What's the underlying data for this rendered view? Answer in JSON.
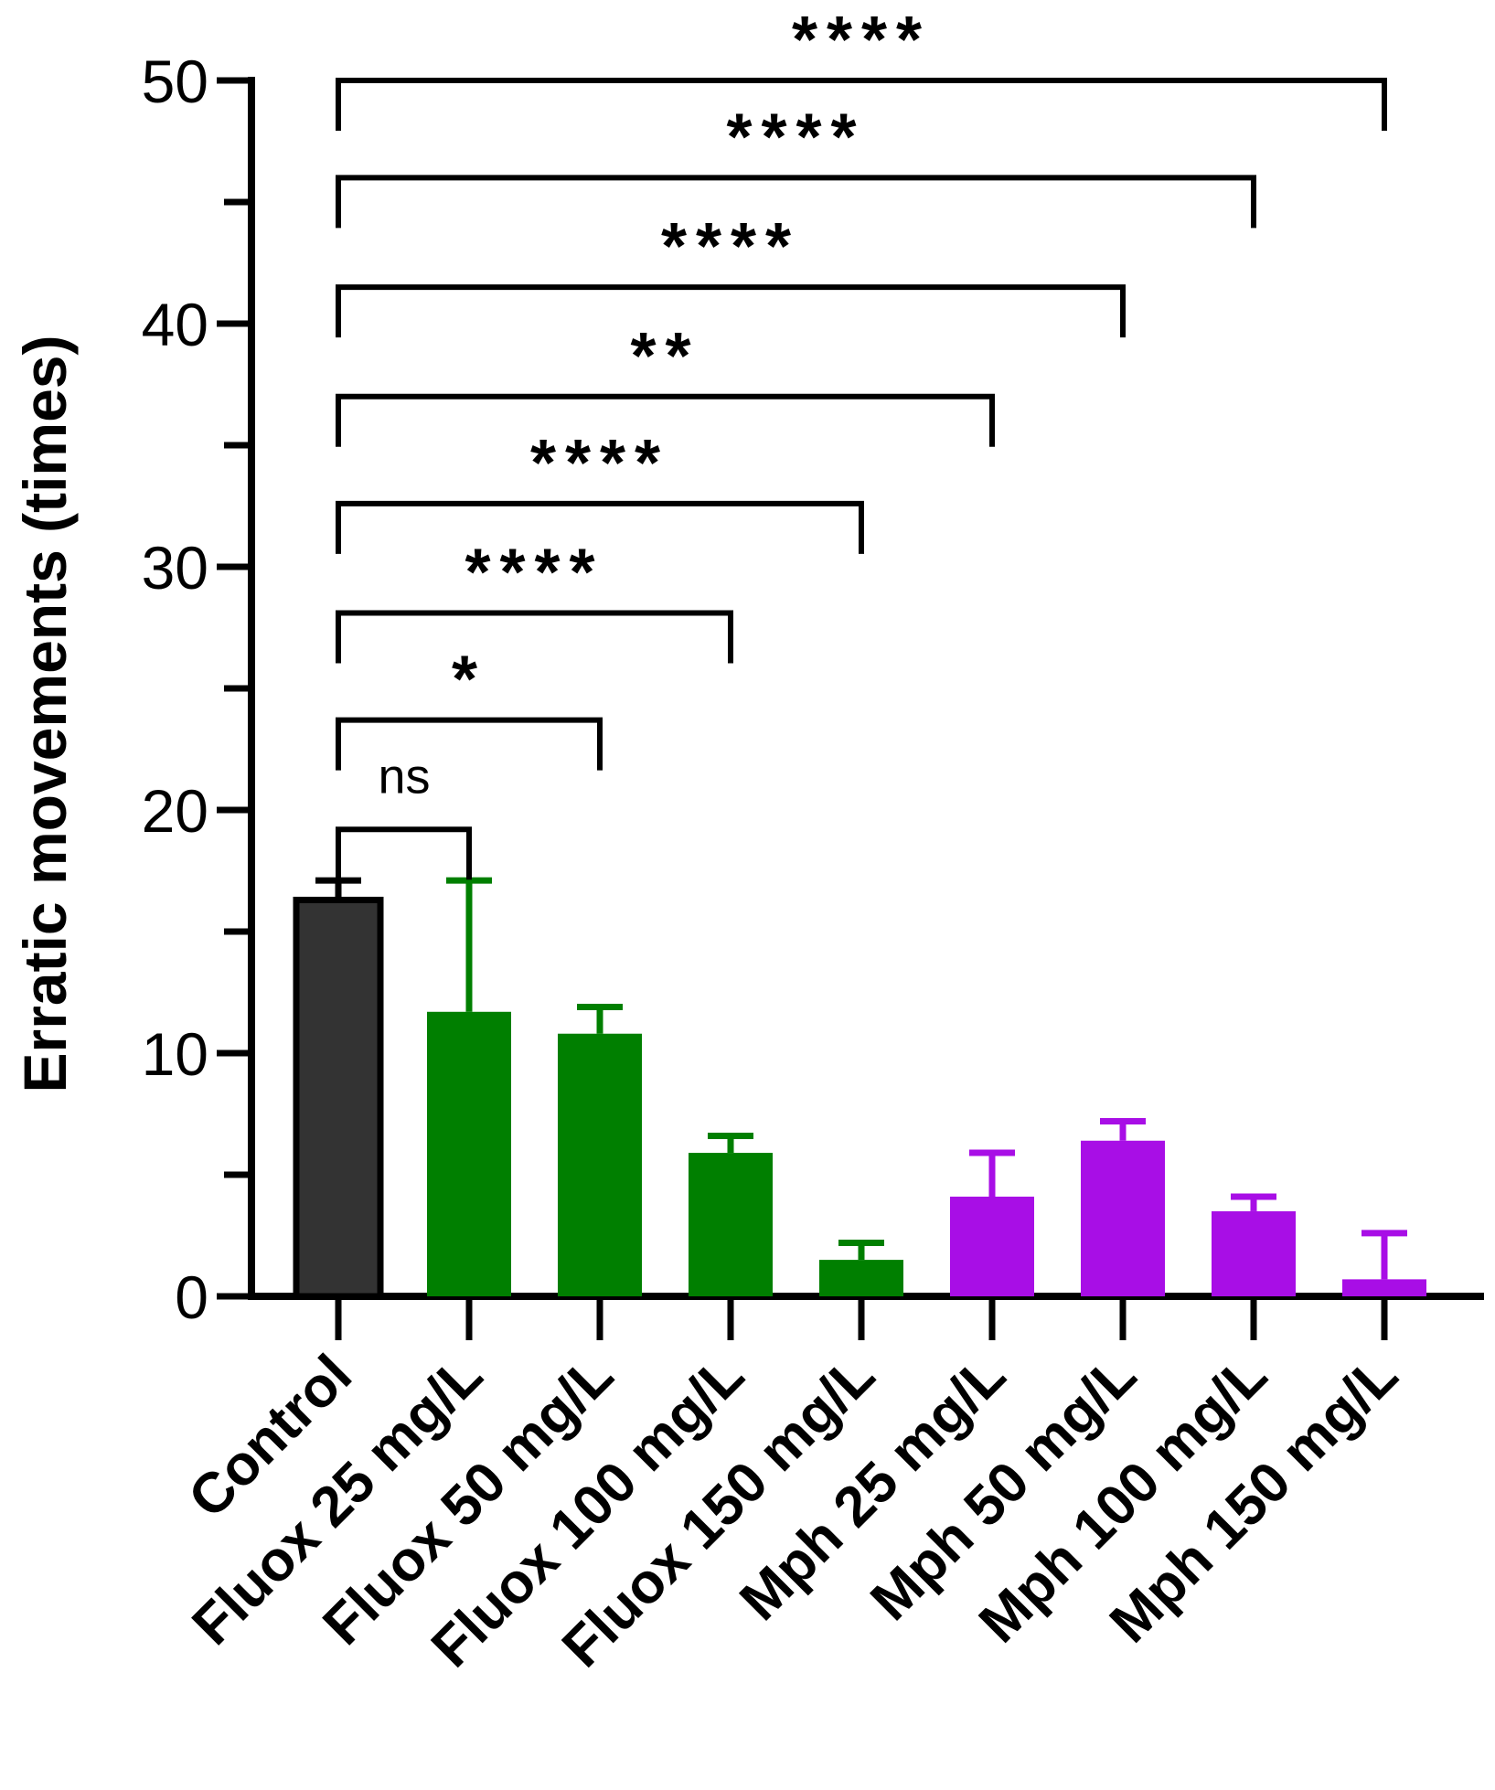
{
  "chart_data": {
    "type": "bar",
    "title": "",
    "xlabel": "",
    "ylabel": "Erratic movements (times)",
    "ylim": [
      0,
      50
    ],
    "yticks": [
      0,
      10,
      20,
      30,
      40,
      50
    ],
    "yminor_step": 5,
    "grid": false,
    "legend": "none",
    "categories": [
      "Control",
      "Fluox 25 mg/L",
      "Fluox 50 mg/L",
      "Fluox 100 mg/L",
      "Fluox 150 mg/L",
      "Mph 25 mg/L",
      "Mph 50 mg/L",
      "Mph 100 mg/L",
      "Mph 150 mg/L"
    ],
    "values": [
      16.3,
      11.7,
      10.8,
      5.9,
      1.5,
      4.1,
      6.4,
      3.5,
      0.7
    ],
    "errors": [
      0.8,
      5.4,
      1.1,
      0.7,
      0.7,
      1.8,
      0.8,
      0.6,
      1.9
    ],
    "colors": [
      "#333333",
      "#007f00",
      "#007f00",
      "#007f00",
      "#007f00",
      "#a80ee6",
      "#a80ee6",
      "#a80ee6",
      "#a80ee6"
    ],
    "comparisons": [
      {
        "from": "Control",
        "to": "Fluox 25 mg/L",
        "label": "ns",
        "bar_y": 19.2
      },
      {
        "from": "Control",
        "to": "Fluox 50 mg/L",
        "label": "*",
        "bar_y": 23.7
      },
      {
        "from": "Control",
        "to": "Fluox 100 mg/L",
        "label": "****",
        "bar_y": 28.1
      },
      {
        "from": "Control",
        "to": "Fluox 150 mg/L",
        "label": "****",
        "bar_y": 32.6
      },
      {
        "from": "Control",
        "to": "Mph 25 mg/L",
        "label": "**",
        "bar_y": 37.0
      },
      {
        "from": "Control",
        "to": "Mph 50 mg/L",
        "label": "****",
        "bar_y": 41.5
      },
      {
        "from": "Control",
        "to": "Mph 100 mg/L",
        "label": "****",
        "bar_y": 46.0
      },
      {
        "from": "Control",
        "to": "Mph 150 mg/L",
        "label": "****",
        "bar_y": 50.0
      }
    ]
  }
}
